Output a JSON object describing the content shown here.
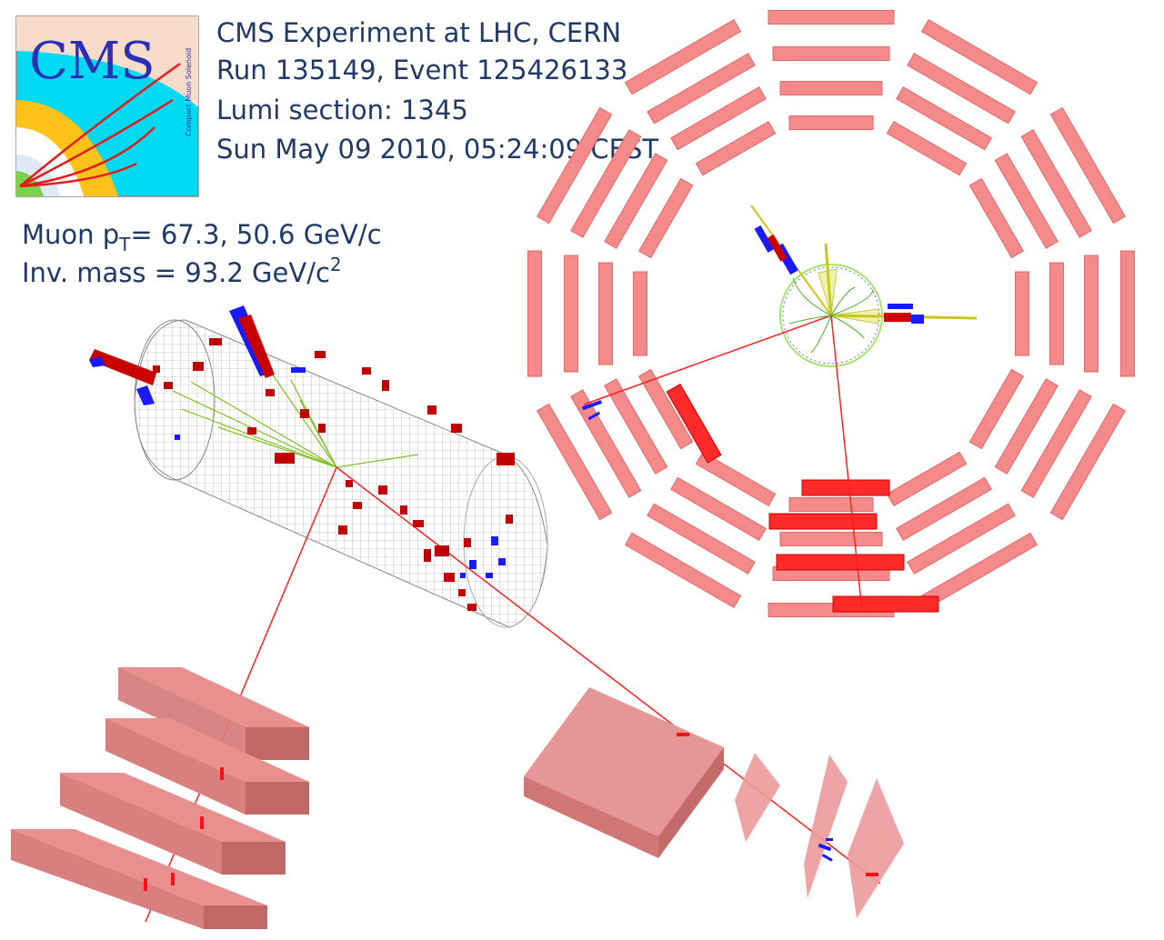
{
  "logo": {
    "text": "CMS",
    "subtitle": "Compact Muon Solenoid"
  },
  "event_info": {
    "line1": "CMS Experiment at LHC, CERN",
    "line2": "Run 135149, Event 125426133",
    "line3": "Lumi section: 1345",
    "line4": "Sun May 09 2010, 05:24:09 CEST"
  },
  "physics": {
    "muon_prefix": "Muon p",
    "muon_subscript": "T",
    "muon_value": "= 67.3, 50.6 GeV/c",
    "mass_prefix": "Inv. mass  = 93.2 GeV/c",
    "mass_superscript": "2"
  },
  "colors": {
    "text": "#1f3a66",
    "muon_chamber": "#f48a8a",
    "muon_chamber_hit": "#ff1e1e",
    "ecal_hit": "#cc0000",
    "hcal_hit": "#1a1aff",
    "track": "#7fbf1f",
    "muon_track": "#ff0000",
    "logo_bg": "#00d9f2"
  }
}
